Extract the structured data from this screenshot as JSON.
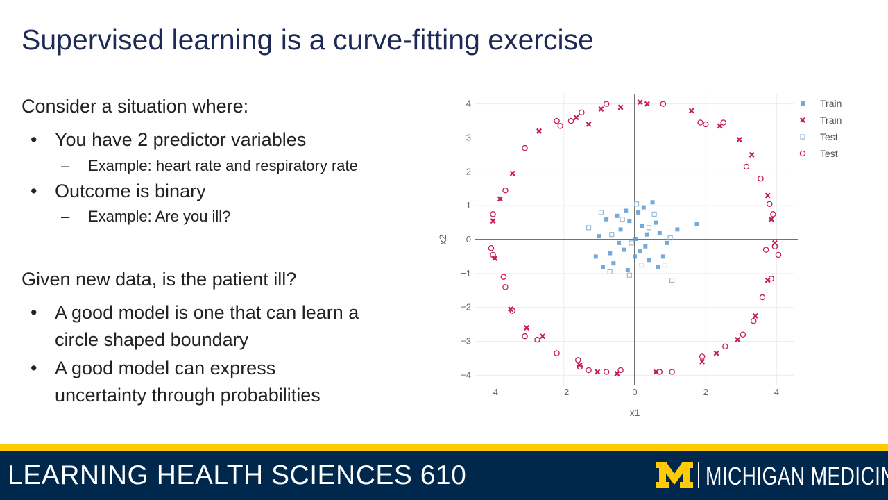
{
  "slide": {
    "title": "Supervised learning is a curve-fitting exercise"
  },
  "content": {
    "section1_lead": "Consider a situation where:",
    "bullet1": "You have 2 predictor variables",
    "bullet1_sub": "Example: heart rate and respiratory rate",
    "bullet2": "Outcome is binary",
    "bullet2_sub": "Example: Are you ill?",
    "section2_lead": "Given new data, is the patient ill?",
    "bullet3_line1": "A good model is one that can learn a",
    "bullet3_line2": "circle shaped boundary",
    "bullet4_line1": "A good model can express",
    "bullet4_line2": "uncertainty through probabilities",
    "bullet_glyph": "•",
    "dash_glyph": "–"
  },
  "chart_data": {
    "type": "scatter",
    "xlabel": "x1",
    "ylabel": "x2",
    "xlim": [
      -4.5,
      4.5
    ],
    "ylim": [
      -4.3,
      4.3
    ],
    "xticks": [
      -4,
      -2,
      0,
      2,
      4
    ],
    "yticks": [
      -4,
      -3,
      -2,
      -1,
      0,
      1,
      2,
      3,
      4
    ],
    "xtick_labels": [
      "−4",
      "−2",
      "0",
      "2",
      "4"
    ],
    "ytick_labels": [
      "−4",
      "−3",
      "−2",
      "−1",
      "0",
      "1",
      "2",
      "3",
      "4"
    ],
    "grid": true,
    "legend_position": "top-right",
    "series": [
      {
        "name": "Train",
        "marker": "square",
        "color": "#5b9bd5",
        "points": [
          [
            0.02,
            0.02
          ],
          [
            0.3,
            -0.2
          ],
          [
            -0.4,
            0.3
          ],
          [
            0.6,
            0.5
          ],
          [
            -0.7,
            -0.4
          ],
          [
            0.1,
            0.8
          ],
          [
            -0.2,
            -0.9
          ],
          [
            0.9,
            -0.1
          ],
          [
            -1.0,
            0.1
          ],
          [
            0.4,
            -0.6
          ],
          [
            -0.5,
            0.7
          ],
          [
            0.7,
            0.2
          ],
          [
            -0.3,
            -0.3
          ],
          [
            0.2,
            0.4
          ],
          [
            -0.8,
            0.6
          ],
          [
            1.2,
            0.3
          ],
          [
            1.75,
            0.45
          ],
          [
            -1.1,
            -0.5
          ],
          [
            0.5,
            1.1
          ],
          [
            -0.6,
            -0.7
          ],
          [
            0.0,
            -0.5
          ],
          [
            0.25,
            0.95
          ],
          [
            -0.15,
            0.55
          ],
          [
            0.8,
            -0.5
          ],
          [
            -0.9,
            -0.8
          ],
          [
            0.35,
            0.15
          ],
          [
            -0.45,
            -0.1
          ],
          [
            0.15,
            -0.35
          ],
          [
            -0.25,
            0.85
          ],
          [
            0.65,
            -0.8
          ]
        ]
      },
      {
        "name": "Train",
        "marker": "x",
        "color": "#c41e4d",
        "points": [
          [
            -0.4,
            3.9
          ],
          [
            0.15,
            4.05
          ],
          [
            1.6,
            3.8
          ],
          [
            2.4,
            3.35
          ],
          [
            2.95,
            2.95
          ],
          [
            3.3,
            2.5
          ],
          [
            3.75,
            1.3
          ],
          [
            3.85,
            0.6
          ],
          [
            3.95,
            -0.1
          ],
          [
            3.75,
            -1.2
          ],
          [
            3.4,
            -2.25
          ],
          [
            2.9,
            -2.95
          ],
          [
            2.3,
            -3.35
          ],
          [
            1.9,
            -3.6
          ],
          [
            0.6,
            -3.9
          ],
          [
            -0.5,
            -3.95
          ],
          [
            -1.05,
            -3.9
          ],
          [
            -1.55,
            -3.7
          ],
          [
            -2.6,
            -2.85
          ],
          [
            -3.05,
            -2.6
          ],
          [
            -3.5,
            -2.05
          ],
          [
            -3.95,
            -0.55
          ],
          [
            -4.0,
            0.55
          ],
          [
            -3.8,
            1.2
          ],
          [
            -3.45,
            1.95
          ],
          [
            -2.7,
            3.2
          ],
          [
            -1.65,
            3.6
          ],
          [
            -0.95,
            3.85
          ],
          [
            -1.3,
            3.4
          ],
          [
            0.35,
            4.0
          ]
        ]
      },
      {
        "name": "Test",
        "marker": "square-open",
        "color": "#9db8d4",
        "points": [
          [
            -0.1,
            -0.1
          ],
          [
            0.4,
            0.35
          ],
          [
            -0.65,
            0.15
          ],
          [
            0.2,
            -0.75
          ],
          [
            -0.35,
            0.6
          ],
          [
            1.0,
            0.05
          ],
          [
            -1.3,
            0.35
          ],
          [
            0.05,
            1.05
          ],
          [
            -0.15,
            -1.05
          ],
          [
            0.85,
            -0.75
          ],
          [
            1.05,
            -1.2
          ],
          [
            -0.7,
            -0.95
          ],
          [
            0.55,
            0.75
          ],
          [
            -0.95,
            0.8
          ]
        ]
      },
      {
        "name": "Test",
        "marker": "circle-open",
        "color": "#c41e4d",
        "points": [
          [
            -1.5,
            3.75
          ],
          [
            -1.8,
            3.5
          ],
          [
            -0.8,
            4.0
          ],
          [
            -2.2,
            3.5
          ],
          [
            -2.1,
            3.35
          ],
          [
            -3.1,
            2.7
          ],
          [
            -3.65,
            1.45
          ],
          [
            -4.0,
            0.75
          ],
          [
            -4.05,
            -0.25
          ],
          [
            -4.0,
            -0.45
          ],
          [
            -3.7,
            -1.1
          ],
          [
            -3.65,
            -1.4
          ],
          [
            -3.45,
            -2.1
          ],
          [
            -3.1,
            -2.85
          ],
          [
            -2.75,
            -2.95
          ],
          [
            -2.2,
            -3.35
          ],
          [
            -1.6,
            -3.55
          ],
          [
            -1.55,
            -3.75
          ],
          [
            -1.3,
            -3.85
          ],
          [
            -0.8,
            -3.9
          ],
          [
            -0.4,
            -3.85
          ],
          [
            0.7,
            -3.9
          ],
          [
            1.05,
            -3.9
          ],
          [
            2.55,
            -3.15
          ],
          [
            3.05,
            -2.8
          ],
          [
            3.35,
            -2.4
          ],
          [
            3.6,
            -1.7
          ],
          [
            3.85,
            -1.15
          ],
          [
            4.05,
            -0.45
          ],
          [
            3.95,
            -0.2
          ],
          [
            3.7,
            -0.3
          ],
          [
            3.9,
            0.75
          ],
          [
            3.55,
            1.8
          ],
          [
            3.15,
            2.15
          ],
          [
            2.5,
            3.45
          ],
          [
            1.85,
            3.45
          ],
          [
            2.0,
            3.4
          ],
          [
            0.8,
            4.0
          ],
          [
            1.9,
            -3.45
          ],
          [
            3.8,
            1.05
          ]
        ]
      }
    ]
  },
  "footer": {
    "course": "LEARNING HEALTH SCIENCES 610",
    "org": "MICHIGAN MEDICINE",
    "logo_text": "M",
    "colors": {
      "navy": "#00274c",
      "maize": "#ffcb05"
    }
  }
}
